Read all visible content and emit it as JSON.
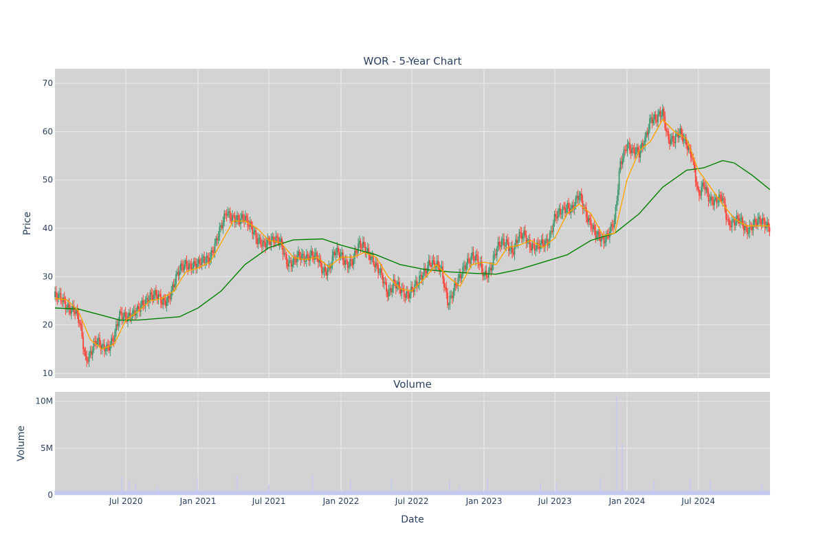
{
  "chart_data": [
    {
      "type": "candlestick",
      "title": "WOR - 5-Year Chart",
      "xlabel": "",
      "ylabel": "Price",
      "xlim": [
        "2020-01-02",
        "2024-12-31"
      ],
      "ylim": [
        9,
        73
      ],
      "y_ticks": [
        10,
        20,
        30,
        40,
        50,
        60,
        70
      ],
      "grid": true,
      "plot_background": "#d3d3d3",
      "increasing_color": "#3d9970",
      "decreasing_color": "#ff4136",
      "series": [
        {
          "kind": "close_price",
          "points": [
            [
              "2020-01-02",
              25.8
            ],
            [
              "2020-01-20",
              25.0
            ],
            [
              "2020-02-05",
              24.0
            ],
            [
              "2020-02-20",
              23.2
            ],
            [
              "2020-03-05",
              20.0
            ],
            [
              "2020-03-20",
              13.0
            ],
            [
              "2020-04-01",
              14.5
            ],
            [
              "2020-04-15",
              16.5
            ],
            [
              "2020-05-01",
              15.0
            ],
            [
              "2020-05-15",
              15.8
            ],
            [
              "2020-06-01",
              17.5
            ],
            [
              "2020-06-15",
              21.5
            ],
            [
              "2020-07-01",
              22.0
            ],
            [
              "2020-07-15",
              22.5
            ],
            [
              "2020-08-01",
              22.5
            ],
            [
              "2020-08-15",
              24.5
            ],
            [
              "2020-09-01",
              26.5
            ],
            [
              "2020-09-15",
              26.0
            ],
            [
              "2020-10-01",
              24.5
            ],
            [
              "2020-10-15",
              25.5
            ],
            [
              "2020-11-01",
              28.5
            ],
            [
              "2020-11-15",
              31.0
            ],
            [
              "2020-12-01",
              33.0
            ],
            [
              "2020-12-15",
              32.5
            ],
            [
              "2021-01-01",
              32.0
            ],
            [
              "2021-01-15",
              33.5
            ],
            [
              "2021-02-01",
              34.5
            ],
            [
              "2021-02-15",
              36.5
            ],
            [
              "2021-03-01",
              40.0
            ],
            [
              "2021-03-15",
              44.0
            ],
            [
              "2021-04-01",
              42.0
            ],
            [
              "2021-04-15",
              41.0
            ],
            [
              "2021-05-01",
              42.5
            ],
            [
              "2021-05-15",
              41.0
            ],
            [
              "2021-06-01",
              37.0
            ],
            [
              "2021-06-15",
              36.5
            ],
            [
              "2021-07-01",
              38.0
            ],
            [
              "2021-07-15",
              37.5
            ],
            [
              "2021-08-01",
              36.5
            ],
            [
              "2021-08-15",
              33.5
            ],
            [
              "2021-09-01",
              33.0
            ],
            [
              "2021-09-15",
              33.8
            ],
            [
              "2021-10-01",
              34.0
            ],
            [
              "2021-10-15",
              35.0
            ],
            [
              "2021-11-01",
              33.5
            ],
            [
              "2021-11-15",
              31.0
            ],
            [
              "2021-12-01",
              32.0
            ],
            [
              "2021-12-15",
              35.0
            ],
            [
              "2022-01-01",
              34.0
            ],
            [
              "2022-01-15",
              33.0
            ],
            [
              "2022-02-01",
              33.5
            ],
            [
              "2022-02-15",
              36.0
            ],
            [
              "2022-03-01",
              36.5
            ],
            [
              "2022-03-15",
              35.0
            ],
            [
              "2022-04-01",
              31.5
            ],
            [
              "2022-04-15",
              30.0
            ],
            [
              "2022-05-01",
              27.0
            ],
            [
              "2022-05-15",
              28.5
            ],
            [
              "2022-06-01",
              27.0
            ],
            [
              "2022-06-15",
              26.5
            ],
            [
              "2022-07-01",
              27.5
            ],
            [
              "2022-07-15",
              28.0
            ],
            [
              "2022-08-01",
              31.0
            ],
            [
              "2022-08-15",
              33.5
            ],
            [
              "2022-09-01",
              32.0
            ],
            [
              "2022-09-15",
              31.0
            ],
            [
              "2022-10-01",
              25.0
            ],
            [
              "2022-10-15",
              27.0
            ],
            [
              "2022-11-01",
              29.5
            ],
            [
              "2022-11-15",
              33.0
            ],
            [
              "2022-12-01",
              34.5
            ],
            [
              "2022-12-15",
              33.0
            ],
            [
              "2023-01-01",
              30.5
            ],
            [
              "2023-01-15",
              31.5
            ],
            [
              "2023-02-01",
              35.0
            ],
            [
              "2023-02-15",
              37.0
            ],
            [
              "2023-03-01",
              37.5
            ],
            [
              "2023-03-15",
              35.0
            ],
            [
              "2023-04-01",
              38.0
            ],
            [
              "2023-04-15",
              39.0
            ],
            [
              "2023-05-01",
              36.5
            ],
            [
              "2023-05-15",
              35.5
            ],
            [
              "2023-06-01",
              37.0
            ],
            [
              "2023-06-15",
              38.0
            ],
            [
              "2023-07-01",
              42.0
            ],
            [
              "2023-07-15",
              43.0
            ],
            [
              "2023-08-01",
              45.0
            ],
            [
              "2023-08-15",
              44.0
            ],
            [
              "2023-09-01",
              46.5
            ],
            [
              "2023-09-15",
              44.0
            ],
            [
              "2023-10-01",
              41.0
            ],
            [
              "2023-10-15",
              38.0
            ],
            [
              "2023-11-01",
              37.5
            ],
            [
              "2023-11-15",
              39.5
            ],
            [
              "2023-12-01",
              41.5
            ],
            [
              "2023-12-15",
              53.0
            ],
            [
              "2024-01-01",
              58.0
            ],
            [
              "2024-01-15",
              56.0
            ],
            [
              "2024-02-01",
              55.0
            ],
            [
              "2024-02-15",
              58.5
            ],
            [
              "2024-03-01",
              63.0
            ],
            [
              "2024-03-15",
              62.0
            ],
            [
              "2024-04-01",
              64.0
            ],
            [
              "2024-04-15",
              59.0
            ],
            [
              "2024-05-01",
              58.0
            ],
            [
              "2024-05-15",
              59.5
            ],
            [
              "2024-06-01",
              58.0
            ],
            [
              "2024-06-15",
              55.0
            ],
            [
              "2024-07-01",
              46.0
            ],
            [
              "2024-07-15",
              49.5
            ],
            [
              "2024-08-01",
              46.0
            ],
            [
              "2024-08-15",
              45.0
            ],
            [
              "2024-09-01",
              46.5
            ],
            [
              "2024-09-15",
              41.5
            ],
            [
              "2024-10-01",
              41.0
            ],
            [
              "2024-10-15",
              41.5
            ],
            [
              "2024-11-01",
              40.0
            ],
            [
              "2024-11-15",
              40.5
            ],
            [
              "2024-12-01",
              41.0
            ],
            [
              "2024-12-15",
              41.5
            ],
            [
              "2024-12-31",
              40.5
            ]
          ]
        },
        {
          "kind": "short_moving_average",
          "color": "#ffa500",
          "points": [
            [
              "2020-01-02",
              25.5
            ],
            [
              "2020-02-01",
              25.2
            ],
            [
              "2020-03-01",
              23.0
            ],
            [
              "2020-04-01",
              17.0
            ],
            [
              "2020-05-01",
              15.0
            ],
            [
              "2020-06-01",
              16.0
            ],
            [
              "2020-07-01",
              21.0
            ],
            [
              "2020-08-01",
              22.8
            ],
            [
              "2020-09-01",
              25.0
            ],
            [
              "2020-10-01",
              25.5
            ],
            [
              "2020-11-01",
              27.0
            ],
            [
              "2020-12-01",
              31.0
            ],
            [
              "2021-01-01",
              31.8
            ],
            [
              "2021-02-01",
              33.0
            ],
            [
              "2021-03-01",
              37.0
            ],
            [
              "2021-04-01",
              41.5
            ],
            [
              "2021-05-01",
              41.5
            ],
            [
              "2021-06-01",
              40.0
            ],
            [
              "2021-07-01",
              37.5
            ],
            [
              "2021-08-01",
              37.0
            ],
            [
              "2021-09-01",
              34.0
            ],
            [
              "2021-10-01",
              33.5
            ],
            [
              "2021-11-01",
              34.0
            ],
            [
              "2021-12-01",
              32.0
            ],
            [
              "2022-01-01",
              34.0
            ],
            [
              "2022-02-01",
              34.0
            ],
            [
              "2022-03-01",
              35.0
            ],
            [
              "2022-04-01",
              34.0
            ],
            [
              "2022-05-01",
              30.0
            ],
            [
              "2022-06-01",
              27.5
            ],
            [
              "2022-07-01",
              27.0
            ],
            [
              "2022-08-01",
              29.5
            ],
            [
              "2022-09-01",
              32.5
            ],
            [
              "2022-10-01",
              30.0
            ],
            [
              "2022-11-01",
              28.0
            ],
            [
              "2022-12-01",
              32.5
            ],
            [
              "2023-01-01",
              33.0
            ],
            [
              "2023-02-01",
              32.5
            ],
            [
              "2023-03-01",
              36.0
            ],
            [
              "2023-04-01",
              36.5
            ],
            [
              "2023-05-01",
              37.5
            ],
            [
              "2023-06-01",
              36.0
            ],
            [
              "2023-07-01",
              38.0
            ],
            [
              "2023-08-01",
              43.0
            ],
            [
              "2023-09-01",
              45.0
            ],
            [
              "2023-10-01",
              43.0
            ],
            [
              "2023-11-01",
              38.5
            ],
            [
              "2023-12-01",
              39.0
            ],
            [
              "2024-01-01",
              50.0
            ],
            [
              "2024-02-01",
              56.0
            ],
            [
              "2024-03-01",
              58.0
            ],
            [
              "2024-04-01",
              62.5
            ],
            [
              "2024-05-01",
              60.0
            ],
            [
              "2024-06-01",
              58.5
            ],
            [
              "2024-07-01",
              52.0
            ],
            [
              "2024-08-01",
              48.5
            ],
            [
              "2024-09-01",
              45.0
            ],
            [
              "2024-10-01",
              42.0
            ],
            [
              "2024-11-01",
              40.5
            ],
            [
              "2024-12-01",
              40.5
            ],
            [
              "2024-12-31",
              40.5
            ]
          ]
        },
        {
          "kind": "long_moving_average",
          "color": "#008000",
          "points": [
            [
              "2020-01-02",
              23.5
            ],
            [
              "2020-03-01",
              23.3
            ],
            [
              "2020-05-01",
              22.0
            ],
            [
              "2020-06-15",
              21.0
            ],
            [
              "2020-08-01",
              21.0
            ],
            [
              "2020-10-01",
              21.4
            ],
            [
              "2020-11-15",
              21.7
            ],
            [
              "2021-01-01",
              23.5
            ],
            [
              "2021-03-01",
              27.0
            ],
            [
              "2021-05-01",
              32.5
            ],
            [
              "2021-07-01",
              36.0
            ],
            [
              "2021-09-01",
              37.6
            ],
            [
              "2021-11-15",
              37.8
            ],
            [
              "2022-01-01",
              36.5
            ],
            [
              "2022-04-01",
              34.5
            ],
            [
              "2022-06-01",
              32.5
            ],
            [
              "2022-08-01",
              31.5
            ],
            [
              "2022-10-01",
              31.0
            ],
            [
              "2022-12-01",
              30.7
            ],
            [
              "2023-02-01",
              30.5
            ],
            [
              "2023-04-01",
              31.5
            ],
            [
              "2023-06-01",
              33.0
            ],
            [
              "2023-08-01",
              34.5
            ],
            [
              "2023-10-01",
              37.5
            ],
            [
              "2023-12-01",
              39.0
            ],
            [
              "2024-02-01",
              43.0
            ],
            [
              "2024-04-01",
              48.5
            ],
            [
              "2024-06-01",
              52.0
            ],
            [
              "2024-07-15",
              52.5
            ],
            [
              "2024-09-01",
              54.0
            ],
            [
              "2024-10-01",
              53.5
            ],
            [
              "2024-11-15",
              51.0
            ],
            [
              "2024-12-31",
              48.0
            ]
          ]
        }
      ]
    },
    {
      "type": "bar",
      "title": "Volume",
      "xlabel": "Date",
      "ylabel": "Volume",
      "xlim": [
        "2020-01-02",
        "2024-12-31"
      ],
      "ylim": [
        0,
        11000000
      ],
      "y_ticks": [
        0,
        5000000,
        10000000
      ],
      "y_tick_labels": [
        "0",
        "5M",
        "10M"
      ],
      "x_ticks": [
        "2020-07-01",
        "2021-01-01",
        "2021-07-01",
        "2022-01-01",
        "2022-07-01",
        "2023-01-01",
        "2023-07-01",
        "2024-01-01",
        "2024-07-01"
      ],
      "x_tick_labels": [
        "Jul 2020",
        "Jan 2021",
        "Jul 2021",
        "Jan 2022",
        "Jul 2022",
        "Jan 2023",
        "Jul 2023",
        "Jan 2024",
        "Jul 2024"
      ],
      "grid": true,
      "plot_background": "#d3d3d3",
      "bar_color": "#c5c8f0",
      "baseline_volume": 420000,
      "spikes": [
        [
          "2020-06-20",
          1900000
        ],
        [
          "2020-07-10",
          1400000
        ],
        [
          "2020-07-25",
          1200000
        ],
        [
          "2020-09-20",
          900000
        ],
        [
          "2020-12-30",
          1800000
        ],
        [
          "2021-04-10",
          2000000
        ],
        [
          "2021-07-01",
          1100000
        ],
        [
          "2021-10-20",
          2200000
        ],
        [
          "2022-01-25",
          1600000
        ],
        [
          "2022-05-10",
          1700000
        ],
        [
          "2022-10-05",
          1600000
        ],
        [
          "2022-11-01",
          900000
        ],
        [
          "2023-01-10",
          1700000
        ],
        [
          "2023-05-25",
          1200000
        ],
        [
          "2023-07-05",
          1300000
        ],
        [
          "2023-10-25",
          1800000
        ],
        [
          "2023-12-05",
          10500000
        ],
        [
          "2023-12-20",
          5400000
        ],
        [
          "2024-03-10",
          1500000
        ],
        [
          "2024-06-10",
          1700000
        ],
        [
          "2024-08-01",
          1600000
        ],
        [
          "2024-12-10",
          1100000
        ]
      ]
    }
  ]
}
